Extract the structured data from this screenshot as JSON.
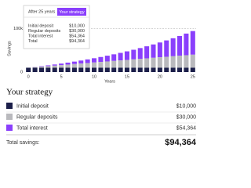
{
  "chart_data": {
    "type": "stacked-bar",
    "x": [
      0,
      1,
      2,
      3,
      4,
      5,
      6,
      7,
      8,
      9,
      10,
      11,
      12,
      13,
      14,
      15,
      16,
      17,
      18,
      19,
      20,
      21,
      22,
      23,
      24,
      25
    ],
    "xlim": [
      -0.5,
      25.5
    ],
    "xticks": [
      0,
      5,
      10,
      15,
      20,
      25
    ],
    "xlabel": "Years",
    "ylabel": "Savings",
    "ylim": [
      0,
      150000
    ],
    "yticks": [
      0,
      {
        "value": 100000,
        "label": "100k"
      }
    ],
    "series": [
      {
        "name": "Initial deposit",
        "color": "#1c1f4a",
        "values": [
          10000,
          10000,
          10000,
          10000,
          10000,
          10000,
          10000,
          10000,
          10000,
          10000,
          10000,
          10000,
          10000,
          10000,
          10000,
          10000,
          10000,
          10000,
          10000,
          10000,
          10000,
          10000,
          10000,
          10000,
          10000,
          10000
        ]
      },
      {
        "name": "Regular deposits",
        "color": "#b9b9bd",
        "values": [
          0,
          1200,
          2400,
          3600,
          4800,
          6000,
          7200,
          8400,
          9600,
          10800,
          12000,
          13200,
          14400,
          15600,
          16800,
          18000,
          19200,
          20400,
          21600,
          22800,
          24000,
          25200,
          26400,
          27600,
          28800,
          30000
        ]
      },
      {
        "name": "Total interest",
        "color": "#8a3ffc",
        "values": [
          0,
          520,
          1129,
          1835,
          2636,
          3543,
          4559,
          5691,
          6945,
          8325,
          9838,
          11495,
          13299,
          15258,
          17382,
          19681,
          22160,
          24830,
          27701,
          30785,
          34093,
          37633,
          41421,
          45467,
          49787,
          54364
        ]
      }
    ]
  },
  "tooltip": {
    "heading": "After 25 years",
    "total_label": "Total"
  },
  "summary": {
    "title": "Your strategy",
    "values": [
      "$10,000",
      "$30,000",
      "$54,364"
    ],
    "total_label": "Total savings:",
    "total": "$94,364"
  }
}
